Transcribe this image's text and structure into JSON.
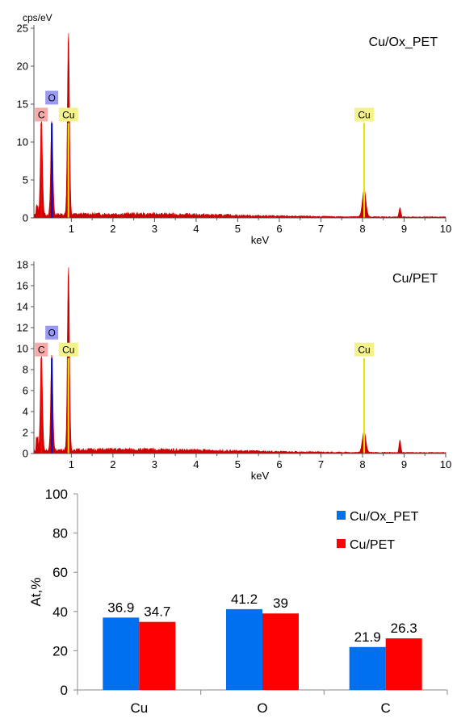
{
  "chart_data": [
    {
      "type": "area",
      "title": "Cu/Ox_PET",
      "ylabel": "cps/eV",
      "xlabel": "keV",
      "xlim": [
        0.1,
        10
      ],
      "ylim": [
        0,
        25
      ],
      "xticks": [
        1,
        2,
        3,
        4,
        5,
        6,
        7,
        8,
        9,
        10
      ],
      "yticks": [
        0,
        5,
        10,
        15,
        20,
        25
      ],
      "peaks": [
        {
          "element": "C",
          "x": 0.28,
          "y": 12.5
        },
        {
          "element": "O",
          "x": 0.53,
          "y": 12.5
        },
        {
          "element": "Cu",
          "x": 0.93,
          "y": 24.3
        },
        {
          "element": "Cu",
          "x": 8.04,
          "y": 3.6
        }
      ],
      "markers": [
        {
          "label": "C",
          "x": 0.28,
          "height": 12.5,
          "color": "#ff0000"
        },
        {
          "label": "O",
          "x": 0.53,
          "height": 12.5,
          "color": "#0000cc"
        },
        {
          "label": "Cu",
          "x": 0.93,
          "height": 12.5,
          "color": "#e8e000"
        },
        {
          "label": "Cu",
          "x": 8.04,
          "height": 12.5,
          "color": "#e8e000"
        }
      ],
      "background": 0.4,
      "grid": false,
      "legend": "none"
    },
    {
      "type": "area",
      "title": "Cu/PET",
      "ylabel": "",
      "xlabel": "keV",
      "xlim": [
        0.1,
        10
      ],
      "ylim": [
        0,
        18
      ],
      "xticks": [
        1,
        2,
        3,
        4,
        5,
        6,
        7,
        8,
        9,
        10
      ],
      "yticks": [
        0,
        2,
        4,
        6,
        8,
        10,
        12,
        14,
        16,
        18
      ],
      "peaks": [
        {
          "element": "C",
          "x": 0.28,
          "y": 9.2
        },
        {
          "element": "O",
          "x": 0.53,
          "y": 9.2
        },
        {
          "element": "Cu",
          "x": 0.93,
          "y": 17.6
        },
        {
          "element": "Cu",
          "x": 8.04,
          "y": 2.0
        }
      ],
      "markers": [
        {
          "label": "C",
          "x": 0.28,
          "height": 9.1,
          "color": "#ff0000"
        },
        {
          "label": "O",
          "x": 0.53,
          "height": 9.1,
          "color": "#0000cc"
        },
        {
          "label": "Cu",
          "x": 0.93,
          "height": 9.1,
          "color": "#e8e000"
        },
        {
          "label": "Cu",
          "x": 8.04,
          "height": 9.1,
          "color": "#e8e000"
        }
      ],
      "background": 0.3,
      "grid": false,
      "legend": "none"
    },
    {
      "type": "bar",
      "title": "",
      "xlabel": "",
      "ylabel": "At,%",
      "ylim": [
        0,
        100
      ],
      "yticks": [
        0,
        20,
        40,
        60,
        80,
        100
      ],
      "categories": [
        "Cu",
        "O",
        "C"
      ],
      "series": [
        {
          "name": "Cu/Ox_PET",
          "values": [
            36.9,
            41.2,
            21.9
          ],
          "labels": [
            "36.9",
            "41.2",
            "21.9"
          ],
          "color": "#0070f0"
        },
        {
          "name": "Cu/PET",
          "values": [
            34.7,
            39,
            26.3
          ],
          "labels": [
            "34.7",
            "39",
            "26.3"
          ],
          "color": "#ff0000"
        }
      ],
      "grid": false,
      "legend": "top-right"
    }
  ]
}
